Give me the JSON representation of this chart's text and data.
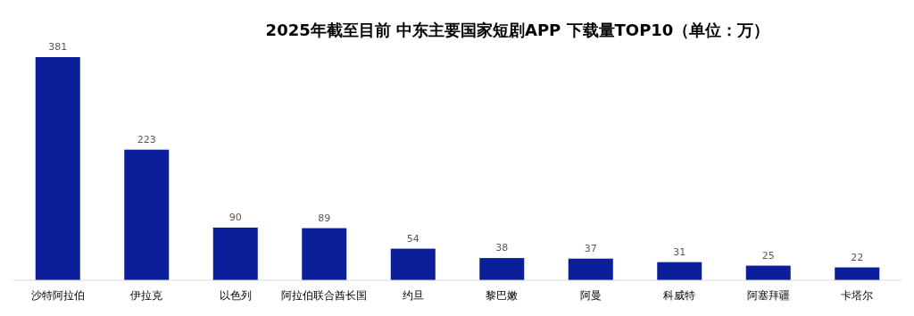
{
  "chart_data": {
    "type": "bar",
    "title": "2025年截至目前 中东主要国家短剧APP 下载量TOP10（单位：万）",
    "categories": [
      "沙特阿拉伯",
      "伊拉克",
      "以色列",
      "阿拉伯联合酋长国",
      "约旦",
      "黎巴嫩",
      "阿曼",
      "科威特",
      "阿塞拜疆",
      "卡塔尔"
    ],
    "values": [
      381,
      223,
      90,
      89,
      54,
      38,
      37,
      31,
      25,
      22
    ],
    "color": "#0b1f9b",
    "data_labels": true
  }
}
